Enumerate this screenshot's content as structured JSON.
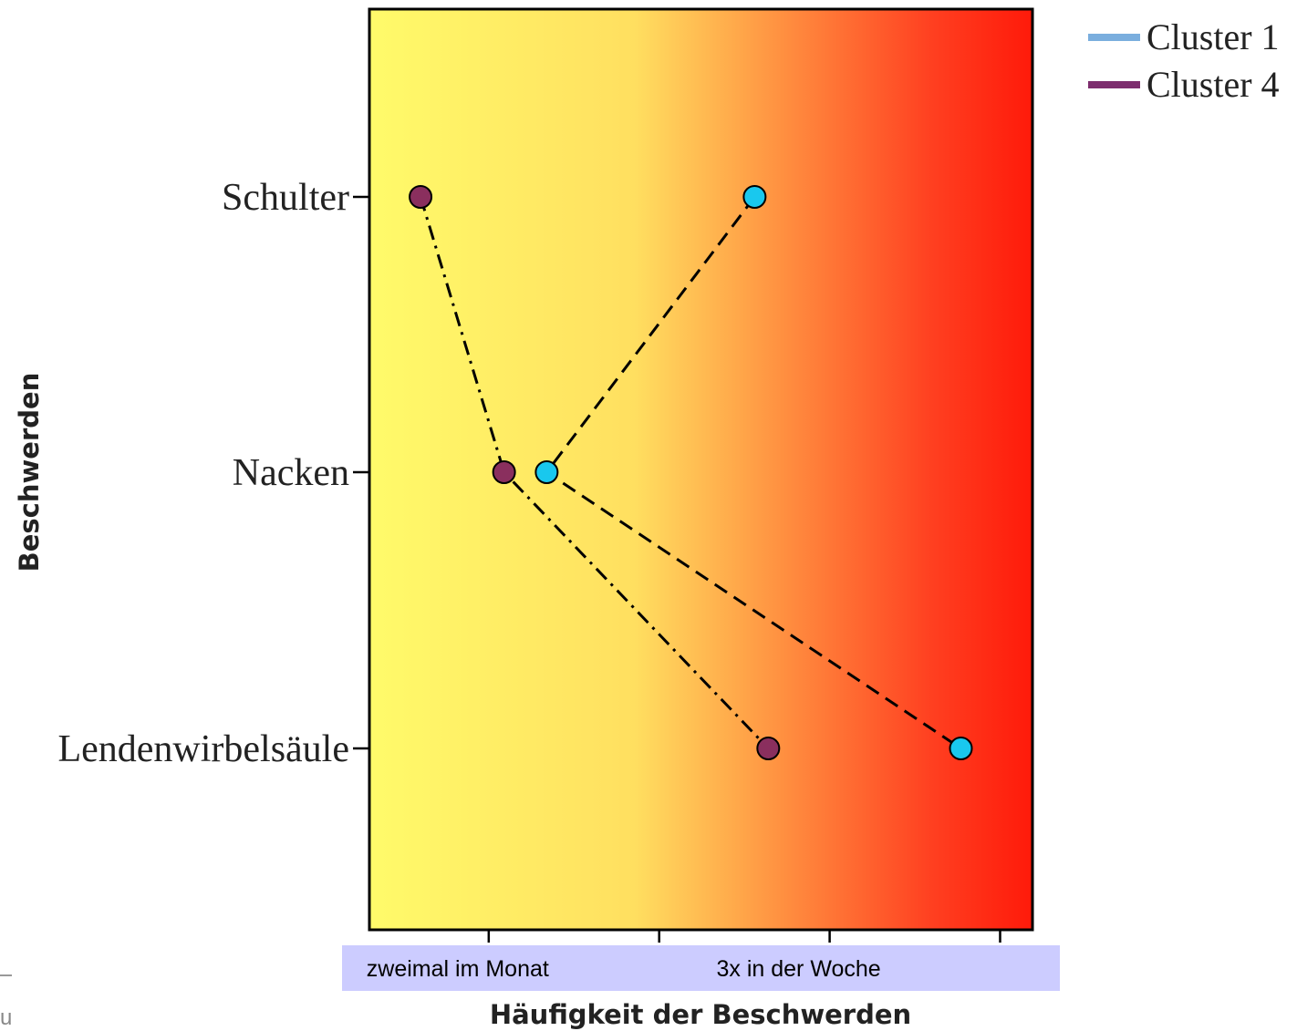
{
  "chart_data": {
    "type": "line",
    "title": "",
    "xlabel": "Häufigkeit der Beschwerden",
    "ylabel": "Beschwerden",
    "categories": [
      "Schulter",
      "Nacken",
      "Lendenwirbelsäule"
    ],
    "x_tick_labels": [
      "zweimal im Monat",
      "3x in der Woche"
    ],
    "x_tick_label_positions": [
      1,
      3
    ],
    "x_ticks": [
      1,
      2,
      3,
      4
    ],
    "xlim": [
      0.3,
      4.19
    ],
    "series": [
      {
        "name": "Cluster 1",
        "legend_color": "#7aaede",
        "marker_color": "#19c8ee",
        "line_style": "dashed",
        "values": [
          2.56,
          1.34,
          3.77
        ]
      },
      {
        "name": "Cluster 4",
        "legend_color": "#7d2d6e",
        "marker_color": "#8a2f5e",
        "line_style": "dash-dot",
        "values": [
          0.6,
          1.09,
          2.64
        ]
      }
    ],
    "background_gradient": [
      "#fffb6a",
      "#ffdf60",
      "#ff3f20",
      "#ff1a0a"
    ],
    "legend_position": "top-right",
    "grid": false
  },
  "page": {
    "edge_fragment": "u"
  }
}
